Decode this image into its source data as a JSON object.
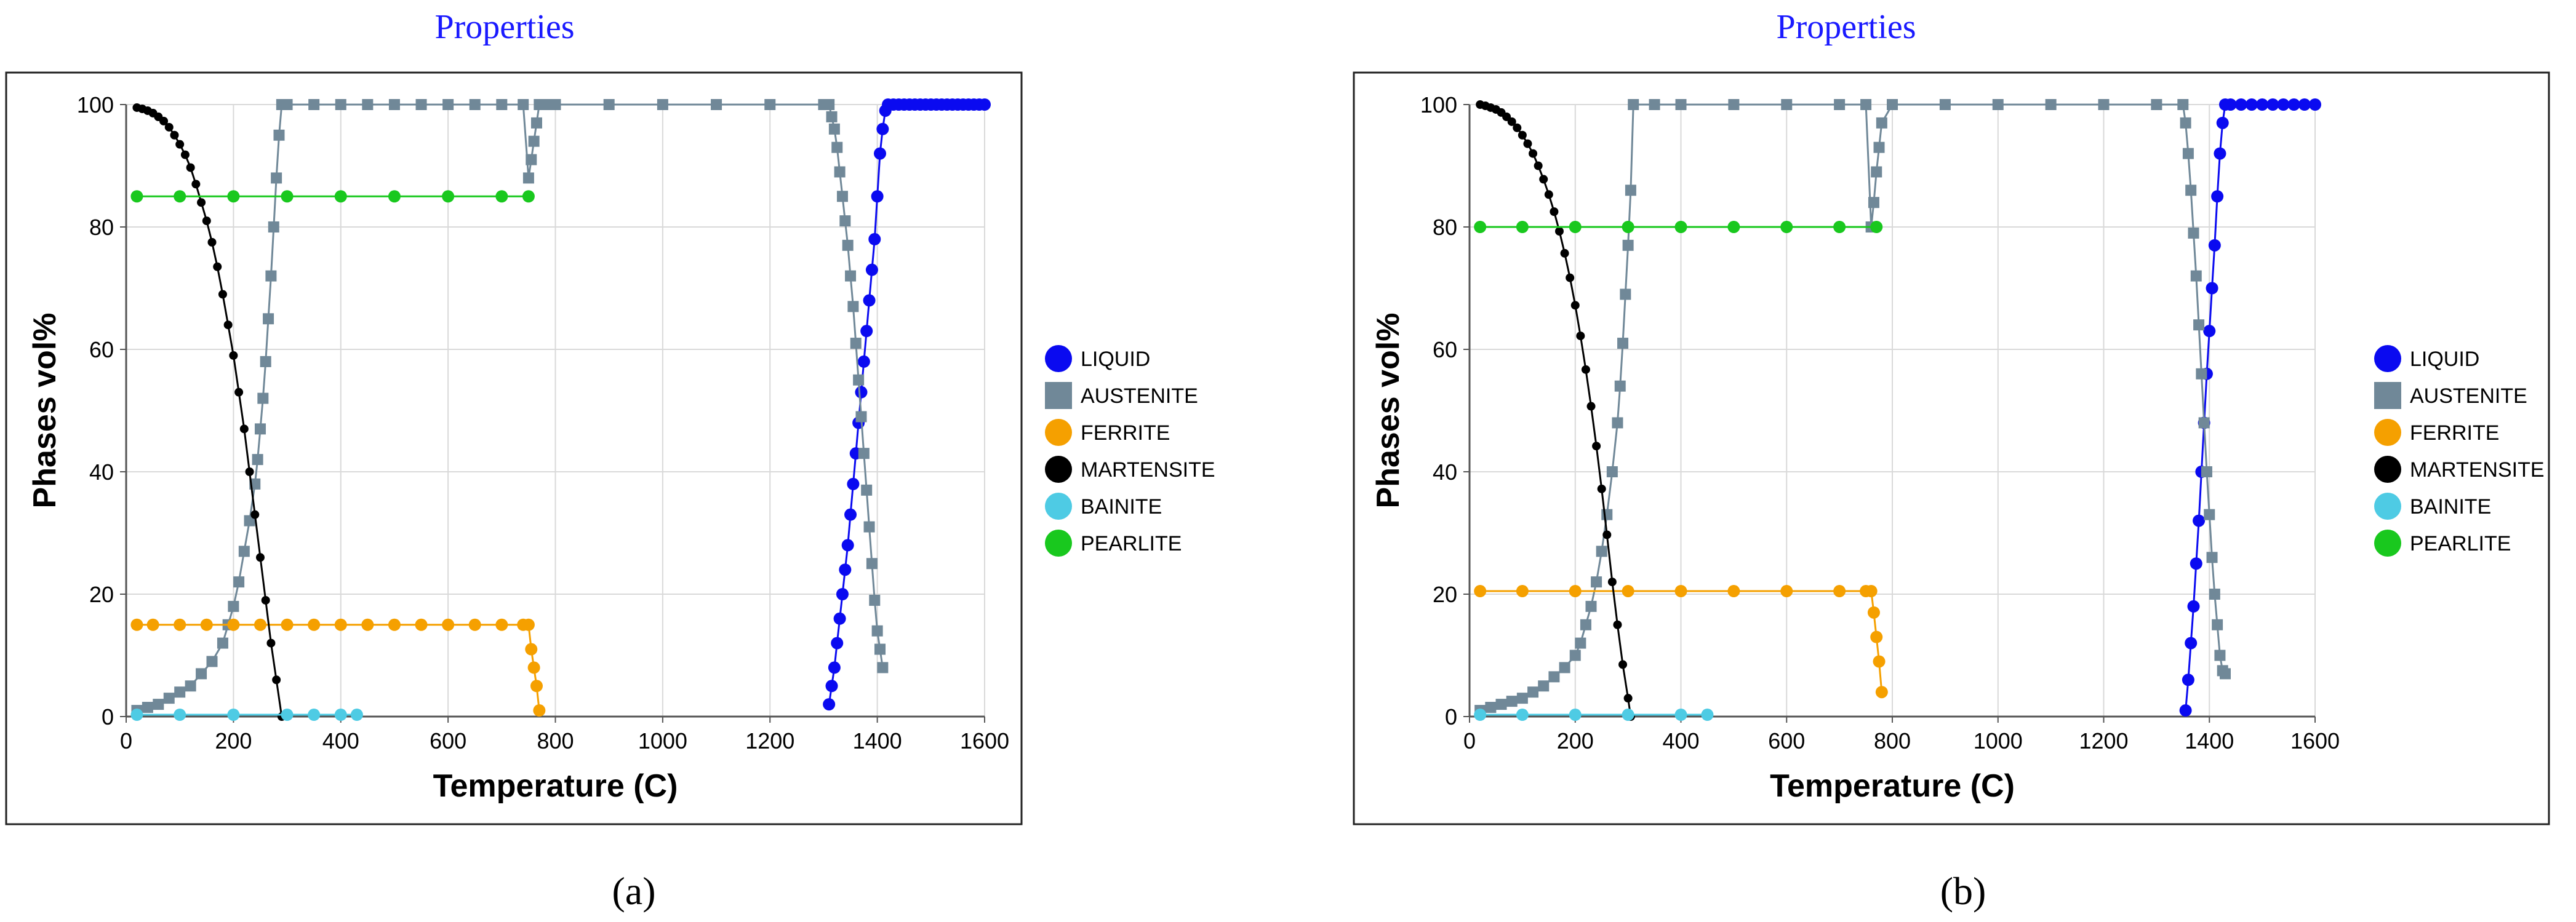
{
  "chart_data": [
    {
      "type": "scatter",
      "panel_label": "(a)",
      "title": "Properties",
      "xlabel": "Temperature (C)",
      "ylabel": "Phases vol%",
      "xlim": [
        0,
        1600
      ],
      "ylim": [
        0,
        100
      ],
      "xticks": [
        0,
        200,
        400,
        600,
        800,
        1000,
        1200,
        1400,
        1600
      ],
      "yticks": [
        0,
        20,
        40,
        60,
        80,
        100
      ],
      "grid": true,
      "legend_position": "right",
      "series": [
        {
          "name": "LIQUID",
          "color": "#0a0af0",
          "marker": "circle",
          "x": [
            1310,
            1315,
            1320,
            1325,
            1330,
            1335,
            1340,
            1345,
            1350,
            1355,
            1360,
            1365,
            1370,
            1375,
            1380,
            1385,
            1390,
            1395,
            1400,
            1405,
            1410,
            1415,
            1420,
            1430,
            1440,
            1450,
            1460,
            1470,
            1480,
            1490,
            1500,
            1510,
            1520,
            1530,
            1540,
            1550,
            1560,
            1570,
            1580,
            1590,
            1600
          ],
          "y": [
            2,
            5,
            8,
            12,
            16,
            20,
            24,
            28,
            33,
            38,
            43,
            48,
            53,
            58,
            63,
            68,
            73,
            78,
            85,
            92,
            96,
            99,
            100,
            100,
            100,
            100,
            100,
            100,
            100,
            100,
            100,
            100,
            100,
            100,
            100,
            100,
            100,
            100,
            100,
            100,
            100
          ]
        },
        {
          "name": "AUSTENITE",
          "color": "#708898",
          "marker": "square",
          "x": [
            20,
            40,
            60,
            80,
            100,
            120,
            140,
            160,
            180,
            190,
            200,
            210,
            220,
            230,
            240,
            245,
            250,
            255,
            260,
            265,
            270,
            275,
            280,
            285,
            290,
            300,
            350,
            400,
            450,
            500,
            550,
            600,
            650,
            700,
            740,
            750,
            755,
            760,
            765,
            770,
            780,
            800,
            900,
            1000,
            1100,
            1200,
            1300,
            1310,
            1315,
            1320,
            1325,
            1330,
            1335,
            1340,
            1345,
            1350,
            1355,
            1360,
            1365,
            1370,
            1375,
            1380,
            1385,
            1390,
            1395,
            1400,
            1405,
            1410
          ],
          "y": [
            1,
            1.5,
            2,
            3,
            4,
            5,
            7,
            9,
            12,
            15,
            18,
            22,
            27,
            32,
            38,
            42,
            47,
            52,
            58,
            65,
            72,
            80,
            88,
            95,
            100,
            100,
            100,
            100,
            100,
            100,
            100,
            100,
            100,
            100,
            100,
            88,
            91,
            94,
            97,
            100,
            100,
            100,
            100,
            100,
            100,
            100,
            100,
            100,
            98,
            96,
            93,
            89,
            85,
            81,
            77,
            72,
            67,
            61,
            55,
            49,
            43,
            37,
            31,
            25,
            19,
            14,
            11,
            8
          ]
        },
        {
          "name": "FERRITE",
          "color": "#f5a000",
          "marker": "circle",
          "x": [
            20,
            50,
            100,
            150,
            200,
            250,
            300,
            350,
            400,
            450,
            500,
            550,
            600,
            650,
            700,
            740,
            750,
            755,
            760,
            765,
            770
          ],
          "y": [
            15,
            15,
            15,
            15,
            15,
            15,
            15,
            15,
            15,
            15,
            15,
            15,
            15,
            15,
            15,
            15,
            15,
            11,
            8,
            5,
            1
          ]
        },
        {
          "name": "MARTENSITE",
          "color": "#000000",
          "marker": "circle",
          "x": [
            20,
            30,
            40,
            50,
            60,
            70,
            80,
            90,
            100,
            110,
            120,
            130,
            140,
            150,
            160,
            170,
            180,
            190,
            200,
            210,
            220,
            230,
            240,
            250,
            260,
            270,
            280,
            290
          ],
          "y": [
            99.5,
            99.3,
            99,
            98.6,
            98,
            97.3,
            96.3,
            95,
            93.5,
            91.8,
            89.7,
            87,
            84,
            81,
            77.5,
            73.5,
            69,
            64,
            59,
            53,
            47,
            40,
            33,
            26,
            19,
            12,
            6,
            0
          ]
        },
        {
          "name": "BAINITE",
          "color": "#4ecbe4",
          "marker": "circle",
          "x": [
            20,
            100,
            200,
            300,
            350,
            400,
            430
          ],
          "y": [
            0.3,
            0.3,
            0.3,
            0.3,
            0.3,
            0.3,
            0.3
          ]
        },
        {
          "name": "PEARLITE",
          "color": "#19c81e",
          "marker": "circle",
          "x": [
            20,
            100,
            200,
            300,
            400,
            500,
            600,
            700,
            750
          ],
          "y": [
            85,
            85,
            85,
            85,
            85,
            85,
            85,
            85,
            85
          ]
        }
      ]
    },
    {
      "type": "scatter",
      "panel_label": "(b)",
      "title": "Properties",
      "xlabel": "Temperature (C)",
      "ylabel": "Phases vol%",
      "xlim": [
        0,
        1600
      ],
      "ylim": [
        0,
        100
      ],
      "xticks": [
        0,
        200,
        400,
        600,
        800,
        1000,
        1200,
        1400,
        1600
      ],
      "yticks": [
        0,
        20,
        40,
        60,
        80,
        100
      ],
      "grid": true,
      "legend_position": "right",
      "series": [
        {
          "name": "LIQUID",
          "color": "#0a0af0",
          "marker": "circle",
          "x": [
            1355,
            1360,
            1365,
            1370,
            1375,
            1380,
            1385,
            1390,
            1395,
            1400,
            1405,
            1410,
            1415,
            1420,
            1425,
            1430,
            1440,
            1460,
            1480,
            1500,
            1520,
            1540,
            1560,
            1580,
            1600
          ],
          "y": [
            1,
            6,
            12,
            18,
            25,
            32,
            40,
            48,
            56,
            63,
            70,
            77,
            85,
            92,
            97,
            100,
            100,
            100,
            100,
            100,
            100,
            100,
            100,
            100,
            100
          ]
        },
        {
          "name": "AUSTENITE",
          "color": "#708898",
          "marker": "square",
          "x": [
            20,
            40,
            60,
            80,
            100,
            120,
            140,
            160,
            180,
            200,
            210,
            220,
            230,
            240,
            250,
            260,
            270,
            280,
            285,
            290,
            295,
            300,
            305,
            310,
            350,
            400,
            500,
            600,
            700,
            750,
            760,
            765,
            770,
            775,
            780,
            800,
            900,
            1000,
            1100,
            1200,
            1300,
            1350,
            1355,
            1360,
            1365,
            1370,
            1375,
            1380,
            1385,
            1390,
            1395,
            1400,
            1405,
            1410,
            1415,
            1420,
            1425,
            1430
          ],
          "y": [
            1,
            1.5,
            2,
            2.5,
            3,
            4,
            5,
            6.5,
            8,
            10,
            12,
            15,
            18,
            22,
            27,
            33,
            40,
            48,
            54,
            61,
            69,
            77,
            86,
            100,
            100,
            100,
            100,
            100,
            100,
            100,
            80,
            84,
            89,
            93,
            97,
            100,
            100,
            100,
            100,
            100,
            100,
            100,
            97,
            92,
            86,
            79,
            72,
            64,
            56,
            48,
            40,
            33,
            26,
            20,
            15,
            10,
            7.5,
            7
          ]
        },
        {
          "name": "FERRITE",
          "color": "#f5a000",
          "marker": "circle",
          "x": [
            20,
            100,
            200,
            300,
            400,
            500,
            600,
            700,
            750,
            760,
            765,
            770,
            775,
            780
          ],
          "y": [
            20.5,
            20.5,
            20.5,
            20.5,
            20.5,
            20.5,
            20.5,
            20.5,
            20.5,
            20.5,
            17,
            13,
            9,
            4
          ]
        },
        {
          "name": "MARTENSITE",
          "color": "#000000",
          "marker": "circle",
          "x": [
            20,
            30,
            40,
            50,
            60,
            70,
            80,
            90,
            100,
            110,
            120,
            130,
            140,
            150,
            160,
            170,
            180,
            190,
            200,
            210,
            220,
            230,
            240,
            250,
            260,
            270,
            280,
            290,
            300,
            305
          ],
          "y": [
            100,
            99.8,
            99.5,
            99.2,
            98.7,
            98,
            97.2,
            96.2,
            95,
            93.6,
            92,
            90,
            87.8,
            85.3,
            82.5,
            79.3,
            75.7,
            71.7,
            67.2,
            62.2,
            56.7,
            50.7,
            44.2,
            37.2,
            29.7,
            22,
            15,
            8.5,
            3,
            0
          ]
        },
        {
          "name": "BAINITE",
          "color": "#4ecbe4",
          "marker": "circle",
          "x": [
            20,
            100,
            200,
            300,
            400,
            450
          ],
          "y": [
            0.3,
            0.3,
            0.3,
            0.3,
            0.3,
            0.3
          ]
        },
        {
          "name": "PEARLITE",
          "color": "#19c81e",
          "marker": "circle",
          "x": [
            20,
            100,
            200,
            300,
            400,
            500,
            600,
            700,
            770
          ],
          "y": [
            80,
            80,
            80,
            80,
            80,
            80,
            80,
            80,
            80
          ]
        }
      ]
    }
  ]
}
